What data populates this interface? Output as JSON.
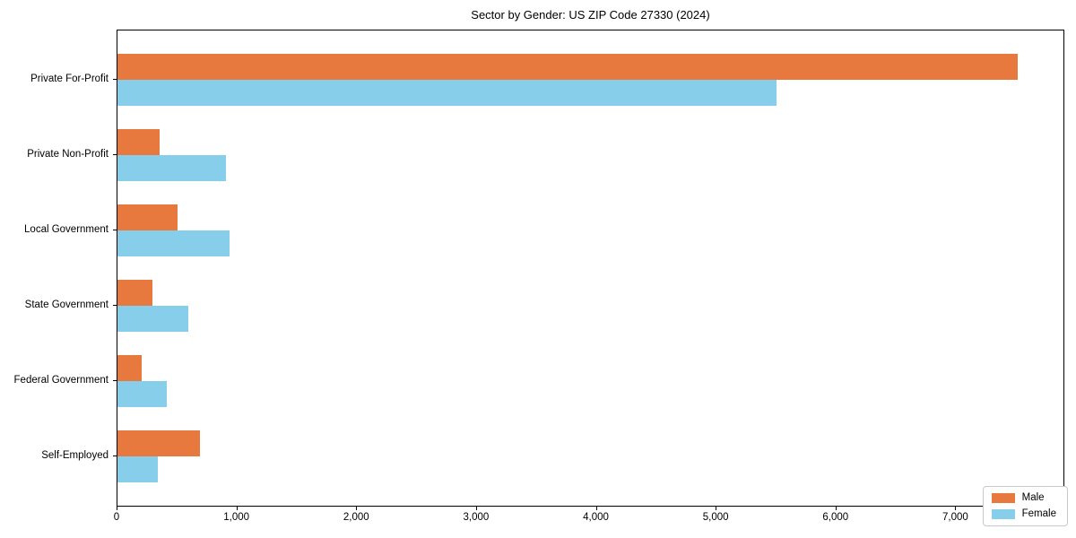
{
  "chart_data": {
    "type": "bar",
    "orientation": "horizontal",
    "title": "Sector by Gender: US ZIP Code 27330 (2024)",
    "categories": [
      "Private For-Profit",
      "Private Non-Profit",
      "Local Government",
      "State Government",
      "Federal Government",
      "Self-Employed"
    ],
    "series": [
      {
        "name": "Male",
        "color": "#e8793e",
        "values": [
          7530,
          355,
          500,
          290,
          200,
          690
        ]
      },
      {
        "name": "Female",
        "color": "#87ceeb",
        "values": [
          5510,
          905,
          940,
          595,
          410,
          335
        ]
      }
    ],
    "xlabel": "",
    "ylabel": "",
    "xlim": [
      0,
      7910
    ],
    "xticks": [
      0,
      1000,
      2000,
      3000,
      4000,
      5000,
      6000,
      7000
    ],
    "xtick_labels": [
      "0",
      "1,000",
      "2,000",
      "3,000",
      "4,000",
      "5,000",
      "6,000",
      "7,000"
    ],
    "grid": false,
    "legend": {
      "position": "lower right",
      "labels": [
        "Male",
        "Female"
      ]
    }
  }
}
